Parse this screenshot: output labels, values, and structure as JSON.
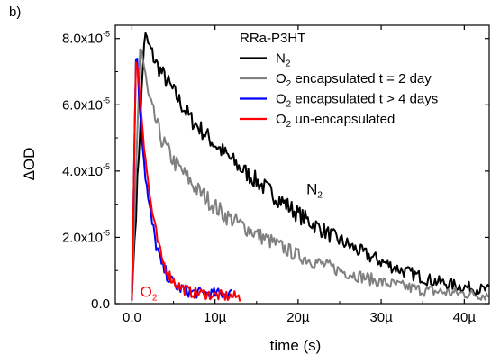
{
  "panel_label": "b)",
  "chart_data": {
    "type": "line",
    "title": "",
    "xlabel": "time (s)",
    "ylabel": "ΔOD",
    "xlim": [
      -2e-06,
      4.3e-05
    ],
    "ylim": [
      0,
      8.4e-05
    ],
    "x_ticks": [
      {
        "value": 0,
        "label": "0.0"
      },
      {
        "value": 1e-05,
        "label": "10µ"
      },
      {
        "value": 2e-05,
        "label": "20µ"
      },
      {
        "value": 3e-05,
        "label": "30µ"
      },
      {
        "value": 4e-05,
        "label": "40µ"
      }
    ],
    "y_ticks": [
      {
        "value": 0,
        "mantissa": "0.0",
        "exponent": ""
      },
      {
        "value": 2e-05,
        "mantissa": "2.0x10",
        "exponent": "-5"
      },
      {
        "value": 4e-05,
        "mantissa": "4.0x10",
        "exponent": "-5"
      },
      {
        "value": 6e-05,
        "mantissa": "6.0x10",
        "exponent": "-5"
      },
      {
        "value": 8e-05,
        "mantissa": "8.0x10",
        "exponent": "-5"
      }
    ],
    "legend": {
      "title": "RRa-P3HT",
      "placement": "top-right"
    },
    "series": [
      {
        "name": "N2",
        "label_main": "N",
        "label_sub": "2",
        "label_rest": "",
        "color": "#000000",
        "x": [
          0,
          1.5e-06,
          3e-06,
          5e-06,
          7e-06,
          1e-05,
          1.3e-05,
          1.6e-05,
          2e-05,
          2.4e-05,
          2.8e-05,
          3.2e-05,
          3.6e-05,
          4e-05,
          4.3e-05
        ],
        "values": [
          2e-06,
          8.1e-05,
          7.2e-05,
          6.4e-05,
          5.6e-05,
          4.8e-05,
          4.1e-05,
          3.5e-05,
          2.7e-05,
          2.05e-05,
          1.5e-05,
          1.05e-05,
          7e-06,
          5e-06,
          4e-06
        ]
      },
      {
        "name": "O2 encapsulated t = 2 day",
        "label_main": "O",
        "label_sub": "2",
        "label_rest": " encapsulated t = 2 day",
        "color": "#808080",
        "x": [
          0,
          1e-06,
          2e-06,
          3.5e-06,
          5e-06,
          8e-06,
          1.1e-05,
          1.5e-05,
          2e-05,
          2.5e-05,
          3e-05,
          3.5e-05,
          4e-05,
          4.3e-05
        ],
        "values": [
          1e-06,
          7.9e-05,
          6.2e-05,
          5e-05,
          4.3e-05,
          3.4e-05,
          2.7e-05,
          2.1e-05,
          1.45e-05,
          1e-05,
          6.5e-06,
          4e-06,
          3e-06,
          2.5e-06
        ]
      },
      {
        "name": "O2 encapsulated t > 4 days",
        "label_main": "O",
        "label_sub": "2",
        "label_rest": " encapsulated t > 4 days",
        "color": "#0000ff",
        "x": [
          0,
          5e-07,
          1e-06,
          1.5e-06,
          2e-06,
          2.8e-06,
          3.5e-06,
          4.5e-06,
          5.5e-06,
          7e-06,
          9e-06,
          1.2e-05
        ],
        "values": [
          1e-06,
          7.8e-05,
          5.8e-05,
          4.2e-05,
          3e-05,
          1.9e-05,
          1.2e-05,
          7.5e-06,
          5e-06,
          3.5e-06,
          3e-06,
          3e-06
        ]
      },
      {
        "name": "O2 un-encapsulated",
        "label_main": "O",
        "label_sub": "2",
        "label_rest": " un-encapsulated",
        "color": "#ff0000",
        "x": [
          0,
          5e-07,
          1e-06,
          1.5e-06,
          2e-06,
          2.8e-06,
          3.5e-06,
          4.5e-06,
          5.5e-06,
          7e-06,
          1e-05,
          1.3e-05
        ],
        "values": [
          1e-06,
          7.7e-05,
          6.2e-05,
          4.8e-05,
          3.5e-05,
          2.2e-05,
          1.4e-05,
          8.5e-06,
          5.5e-06,
          3.5e-06,
          2.5e-06,
          2e-06
        ]
      }
    ],
    "annotations": [
      {
        "text_main": "N",
        "text_sub": "2",
        "color": "#000000",
        "x": 2.1e-05,
        "y": 3.3e-05
      },
      {
        "text_main": "O",
        "text_sub": "2",
        "color": "#ff0000",
        "x": 1e-06,
        "y": 2e-06
      }
    ]
  }
}
